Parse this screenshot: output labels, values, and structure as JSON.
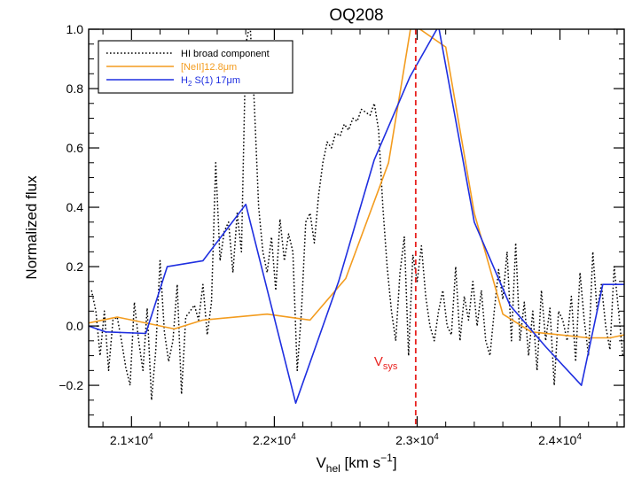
{
  "chart_data": {
    "type": "line",
    "title": "OQ208",
    "xlabel": {
      "main": "V",
      "sub": "hel",
      "unit": " [km s",
      "sup": "−1",
      "close": "]"
    },
    "ylabel": "Normalized flux",
    "xlim": [
      20700,
      24450
    ],
    "ylim": [
      -0.34,
      1.0
    ],
    "xticks": [
      {
        "value": 21000,
        "mantissa": "2.1×10",
        "exp": "4"
      },
      {
        "value": 22000,
        "mantissa": "2.2×10",
        "exp": "4"
      },
      {
        "value": 23000,
        "mantissa": "2.3×10",
        "exp": "4"
      },
      {
        "value": 24000,
        "mantissa": "2.4×10",
        "exp": "4"
      }
    ],
    "yticks": [
      "−0.2",
      "0.0",
      "0.2",
      "0.4",
      "0.6",
      "0.8",
      "1.0"
    ],
    "yticks_values": [
      -0.2,
      0.0,
      0.2,
      0.4,
      0.6,
      0.8,
      1.0
    ],
    "vsys": {
      "value": 22990,
      "label": "V",
      "sub": "sys",
      "color": "#e8221f"
    },
    "legend": {
      "position": "top-left",
      "entries": [
        {
          "label": "HI broad component",
          "color": "#000000",
          "style": "dotted"
        },
        {
          "label": "[NeII]12.8μm",
          "color": "#f39c1f",
          "style": "solid"
        },
        {
          "label_main": "H",
          "label_sub": "2",
          "label_rest": " S(1) 17μm",
          "color": "#1f2fe0",
          "style": "solid"
        }
      ]
    },
    "series": [
      {
        "name": "HI broad component",
        "color": "#000000",
        "style": "dotted",
        "x": [
          20720,
          20750,
          20780,
          20810,
          20840,
          20870,
          20900,
          20930,
          20960,
          20990,
          21020,
          21050,
          21080,
          21110,
          21140,
          21170,
          21200,
          21230,
          21260,
          21290,
          21320,
          21350,
          21380,
          21410,
          21440,
          21470,
          21500,
          21530,
          21560,
          21590,
          21620,
          21650,
          21680,
          21710,
          21740,
          21770,
          21800,
          21830,
          21860,
          21890,
          21920,
          21950,
          21980,
          22010,
          22040,
          22070,
          22100,
          22130,
          22160,
          22190,
          22220,
          22250,
          22280,
          22310,
          22340,
          22370,
          22400,
          22430,
          22460,
          22490,
          22520,
          22550,
          22580,
          22610,
          22640,
          22670,
          22700,
          22730,
          22760,
          22790,
          22820,
          22850,
          22880,
          22910,
          22940,
          22970,
          23000,
          23030,
          23060,
          23090,
          23120,
          23150,
          23180,
          23210,
          23240,
          23270,
          23300,
          23330,
          23360,
          23390,
          23420,
          23450,
          23480,
          23510,
          23540,
          23570,
          23600,
          23630,
          23660,
          23690,
          23720,
          23750,
          23780,
          23810,
          23840,
          23870,
          23900,
          23930,
          23960,
          23990,
          24020,
          24050,
          24080,
          24110,
          24140,
          24170,
          24200,
          24230,
          24260,
          24290,
          24320,
          24350,
          24380,
          24410,
          24440
        ],
        "y": [
          0.12,
          0.05,
          -0.1,
          0.05,
          -0.15,
          0.02,
          0.03,
          -0.05,
          -0.14,
          -0.2,
          0.08,
          -0.05,
          -0.15,
          0.06,
          -0.25,
          -0.08,
          0.22,
          -0.02,
          -0.12,
          -0.05,
          0.14,
          -0.23,
          0.03,
          0.05,
          0.07,
          0.02,
          0.14,
          -0.03,
          0.08,
          0.55,
          0.22,
          0.32,
          0.35,
          0.18,
          0.38,
          0.25,
          0.95,
          1.02,
          0.75,
          0.4,
          0.25,
          0.18,
          0.3,
          0.12,
          0.36,
          0.22,
          0.31,
          0.25,
          -0.15,
          0.05,
          0.35,
          0.38,
          0.28,
          0.44,
          0.55,
          0.62,
          0.6,
          0.65,
          0.64,
          0.68,
          0.66,
          0.7,
          0.69,
          0.73,
          0.72,
          0.71,
          0.75,
          0.66,
          0.4,
          0.2,
          0.05,
          -0.05,
          0.18,
          0.3,
          -0.1,
          0.24,
          0.15,
          0.27,
          0.1,
          0.0,
          -0.05,
          0.05,
          0.12,
          0.0,
          -0.03,
          0.2,
          -0.05,
          0.1,
          0.02,
          0.15,
          0.0,
          0.12,
          -0.05,
          -0.1,
          0.05,
          0.19,
          0.09,
          0.25,
          -0.05,
          0.28,
          -0.05,
          0.08,
          -0.1,
          0.05,
          -0.15,
          0.12,
          -0.05,
          0.06,
          -0.2,
          0.05,
          0.02,
          -0.05,
          0.1,
          -0.12,
          0.18,
          0.02,
          -0.1,
          0.25,
          0.05,
          0.14,
          0.0,
          -0.08,
          0.2,
          0.05,
          -0.1
        ]
      },
      {
        "name": "[NeII]12.8μm",
        "color": "#f39c1f",
        "style": "solid",
        "x": [
          20700,
          20900,
          21300,
          21500,
          21950,
          22250,
          22500,
          22800,
          22960,
          23200,
          23400,
          23600,
          23800,
          24000,
          24200,
          24350,
          24450
        ],
        "y": [
          0.01,
          0.03,
          -0.01,
          0.02,
          0.04,
          0.02,
          0.16,
          0.55,
          1.02,
          0.94,
          0.38,
          0.04,
          -0.02,
          -0.03,
          -0.04,
          -0.04,
          -0.03
        ]
      },
      {
        "name": "H2 S(1) 17μm",
        "color": "#1f2fe0",
        "style": "solid",
        "x": [
          20700,
          20820,
          21100,
          21250,
          21500,
          21800,
          22150,
          22450,
          22700,
          22950,
          23150,
          23400,
          23650,
          23900,
          24150,
          24300,
          24450
        ],
        "y": [
          0.0,
          -0.02,
          -0.025,
          0.2,
          0.22,
          0.41,
          -0.26,
          0.15,
          0.56,
          0.84,
          1.01,
          0.35,
          0.07,
          -0.07,
          -0.2,
          0.14,
          0.14
        ]
      }
    ]
  }
}
